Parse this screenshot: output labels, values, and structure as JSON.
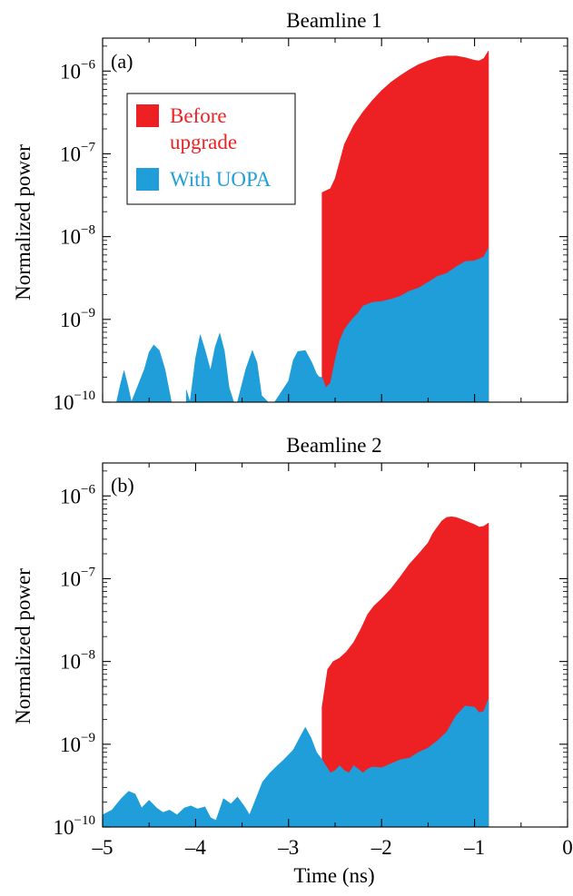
{
  "chart_data": [
    {
      "type": "area",
      "title": "Beamline 1",
      "panel_label": "(a)",
      "ylabel": "Normalized power",
      "xlabel": "",
      "xlim": [
        -5,
        0
      ],
      "ylim": [
        1e-10,
        2.5e-06
      ],
      "yscale": "log",
      "xticks": [
        -5,
        -4,
        -3,
        -2,
        -1,
        0
      ],
      "xtick_labels": [
        "",
        "",
        "",
        "",
        "",
        ""
      ],
      "yticks": [
        1e-10,
        1e-09,
        1e-08,
        1e-07,
        1e-06
      ],
      "ytick_labels": [
        {
          "base": "10",
          "exp": "−10"
        },
        {
          "base": "10",
          "exp": "−9"
        },
        {
          "base": "10",
          "exp": "−8"
        },
        {
          "base": "10",
          "exp": "−7"
        },
        {
          "base": "10",
          "exp": "−6"
        }
      ],
      "legend": {
        "position": "upper-left",
        "entries": [
          {
            "lines": [
              "Before",
              "upgrade"
            ],
            "color": "#ed2024"
          },
          {
            "lines": [
              "With UOPA"
            ],
            "color": "#1f9ed9"
          }
        ]
      },
      "series": [
        {
          "name": "Before upgrade",
          "color": "#ed2024",
          "x": [
            -2.64,
            -2.64,
            -2.55,
            -2.5,
            -2.45,
            -2.4,
            -2.3,
            -2.2,
            -2.1,
            -2.0,
            -1.9,
            -1.8,
            -1.7,
            -1.6,
            -1.5,
            -1.4,
            -1.3,
            -1.2,
            -1.1,
            -1.0,
            -0.95,
            -0.9,
            -0.85,
            -0.85
          ],
          "y": [
            1e-10,
            3.4e-08,
            3.8e-08,
            5e-08,
            8e-08,
            1.3e-07,
            2.2e-07,
            3.2e-07,
            4.4e-07,
            5.8e-07,
            7.3e-07,
            8.8e-07,
            1.04e-06,
            1.2e-06,
            1.33e-06,
            1.45e-06,
            1.52e-06,
            1.52e-06,
            1.45e-06,
            1.35e-06,
            1.33e-06,
            1.42e-06,
            1.75e-06,
            1e-10
          ]
        },
        {
          "name": "With UOPA",
          "color": "#1f9ed9",
          "x": [
            -4.85,
            -4.81,
            -4.77,
            -4.73,
            -4.69,
            -4.69,
            -4.55,
            -4.5,
            -4.45,
            -4.39,
            -4.33,
            -4.26,
            -4.2,
            -4.15,
            -4.1,
            -4.1,
            -4.06,
            -4.06,
            -4.0,
            -3.95,
            -3.9,
            -3.84,
            -3.79,
            -3.74,
            -3.69,
            -3.64,
            -3.59,
            -3.55,
            -3.55,
            -3.46,
            -3.39,
            -3.34,
            -3.29,
            -3.22,
            -3.15,
            -3.15,
            -3.0,
            -2.95,
            -2.9,
            -2.82,
            -2.75,
            -2.7,
            -2.67,
            -2.64,
            -2.6,
            -2.55,
            -2.5,
            -2.45,
            -2.4,
            -2.35,
            -2.3,
            -2.25,
            -2.2,
            -2.1,
            -2.0,
            -1.9,
            -1.8,
            -1.7,
            -1.6,
            -1.5,
            -1.4,
            -1.3,
            -1.2,
            -1.1,
            -1.0,
            -0.9,
            -0.85,
            -0.85
          ],
          "y": [
            1e-10,
            1.6e-10,
            2.4e-10,
            1.6e-10,
            1e-10,
            1e-10,
            2.5e-10,
            4e-10,
            4.9e-10,
            4.2e-10,
            2.5e-10,
            1e-10,
            1e-10,
            1e-10,
            1e-10,
            1.4e-10,
            1e-10,
            1e-10,
            3.4e-10,
            6.5e-10,
            4.3e-10,
            2.4e-10,
            4.6e-10,
            6.8e-10,
            4.1e-10,
            1.5e-10,
            1e-10,
            1e-10,
            1e-10,
            2.5e-10,
            4.2e-10,
            3e-10,
            1.2e-10,
            1e-10,
            1e-10,
            1e-10,
            1.8e-10,
            3.2e-10,
            4.1e-10,
            4.2e-10,
            3e-10,
            2.2e-10,
            2e-10,
            2e-10,
            1.5e-10,
            1.7e-10,
            3.2e-10,
            5.5e-10,
            7.5e-10,
            9e-10,
            1.05e-09,
            1.2e-09,
            1.45e-09,
            1.6e-09,
            1.65e-09,
            1.75e-09,
            1.9e-09,
            2.2e-09,
            2.4e-09,
            2.8e-09,
            3.3e-09,
            3.6e-09,
            4.3e-09,
            5e-09,
            5.1e-09,
            5.7e-09,
            7.3e-09,
            1e-10
          ]
        }
      ]
    },
    {
      "type": "area",
      "title": "Beamline 2",
      "panel_label": "(b)",
      "ylabel": "Normalized power",
      "xlabel": "Time (ns)",
      "xlim": [
        -5,
        0
      ],
      "ylim": [
        1e-10,
        2.5e-06
      ],
      "yscale": "log",
      "xticks": [
        -5,
        -4,
        -3,
        -2,
        -1,
        0
      ],
      "xtick_labels": [
        "–5",
        "–4",
        "–3",
        "–2",
        "–1",
        "0"
      ],
      "yticks": [
        1e-10,
        1e-09,
        1e-08,
        1e-07,
        1e-06
      ],
      "ytick_labels": [
        {
          "base": "10",
          "exp": "−10"
        },
        {
          "base": "10",
          "exp": "−9"
        },
        {
          "base": "10",
          "exp": "−8"
        },
        {
          "base": "10",
          "exp": "−7"
        },
        {
          "base": "10",
          "exp": "−6"
        }
      ],
      "series": [
        {
          "name": "Before upgrade",
          "color": "#ed2024",
          "x": [
            -2.64,
            -2.64,
            -2.58,
            -2.52,
            -2.45,
            -2.38,
            -2.3,
            -2.22,
            -2.15,
            -2.08,
            -2.0,
            -1.9,
            -1.8,
            -1.7,
            -1.6,
            -1.5,
            -1.45,
            -1.4,
            -1.35,
            -1.3,
            -1.25,
            -1.2,
            -1.1,
            -1.0,
            -0.95,
            -0.9,
            -0.85,
            -0.85
          ],
          "y": [
            1e-10,
            2.8e-09,
            8e-09,
            1e-08,
            1.1e-08,
            1.3e-08,
            1.7e-08,
            2.5e-08,
            3.7e-08,
            4.7e-08,
            5.7e-08,
            7.5e-08,
            1.05e-07,
            1.5e-07,
            2e-07,
            2.7e-07,
            3.5e-07,
            4.2e-07,
            5e-07,
            5.5e-07,
            5.6e-07,
            5.5e-07,
            5e-07,
            4.5e-07,
            4.2e-07,
            4.3e-07,
            4.7e-07,
            1e-10
          ]
        },
        {
          "name": "With UOPA",
          "color": "#1f9ed9",
          "x": [
            -5.0,
            -4.9,
            -4.8,
            -4.72,
            -4.65,
            -4.58,
            -4.5,
            -4.42,
            -4.35,
            -4.28,
            -4.2,
            -4.12,
            -4.05,
            -3.98,
            -3.9,
            -3.84,
            -3.78,
            -3.7,
            -3.62,
            -3.55,
            -3.48,
            -3.42,
            -3.35,
            -3.28,
            -3.2,
            -3.12,
            -3.05,
            -2.95,
            -2.88,
            -2.82,
            -2.76,
            -2.7,
            -2.64,
            -2.6,
            -2.55,
            -2.5,
            -2.45,
            -2.4,
            -2.35,
            -2.3,
            -2.25,
            -2.2,
            -2.15,
            -2.1,
            -2.0,
            -1.9,
            -1.8,
            -1.7,
            -1.6,
            -1.5,
            -1.4,
            -1.3,
            -1.2,
            -1.1,
            -1.0,
            -0.95,
            -0.9,
            -0.85,
            -0.85
          ],
          "y": [
            1.4e-10,
            1.6e-10,
            2.2e-10,
            2.7e-10,
            2.5e-10,
            1.7e-10,
            2.1e-10,
            1.7e-10,
            1.5e-10,
            1.6e-10,
            1.4e-10,
            1.7e-10,
            1.8e-10,
            1.65e-10,
            1.75e-10,
            1.3e-10,
            1.2e-10,
            2.2e-10,
            1.9e-10,
            2.3e-10,
            1.8e-10,
            1.4e-10,
            2.2e-10,
            3.5e-10,
            4.5e-10,
            5.5e-10,
            6.5e-10,
            8.5e-10,
            1.2e-09,
            1.6e-09,
            1.2e-09,
            8e-10,
            6.5e-10,
            5.5e-10,
            4.5e-10,
            4.8e-10,
            5.5e-10,
            4.8e-10,
            4.5e-10,
            5.5e-10,
            5e-10,
            4.5e-10,
            5e-10,
            5.3e-10,
            5.2e-10,
            5.8e-10,
            6.5e-10,
            6.8e-10,
            8e-10,
            9e-10,
            1.1e-09,
            1.4e-09,
            2.2e-09,
            2.9e-09,
            2.8e-09,
            2.4e-09,
            2.5e-09,
            3.5e-09,
            1e-10
          ]
        }
      ]
    }
  ]
}
